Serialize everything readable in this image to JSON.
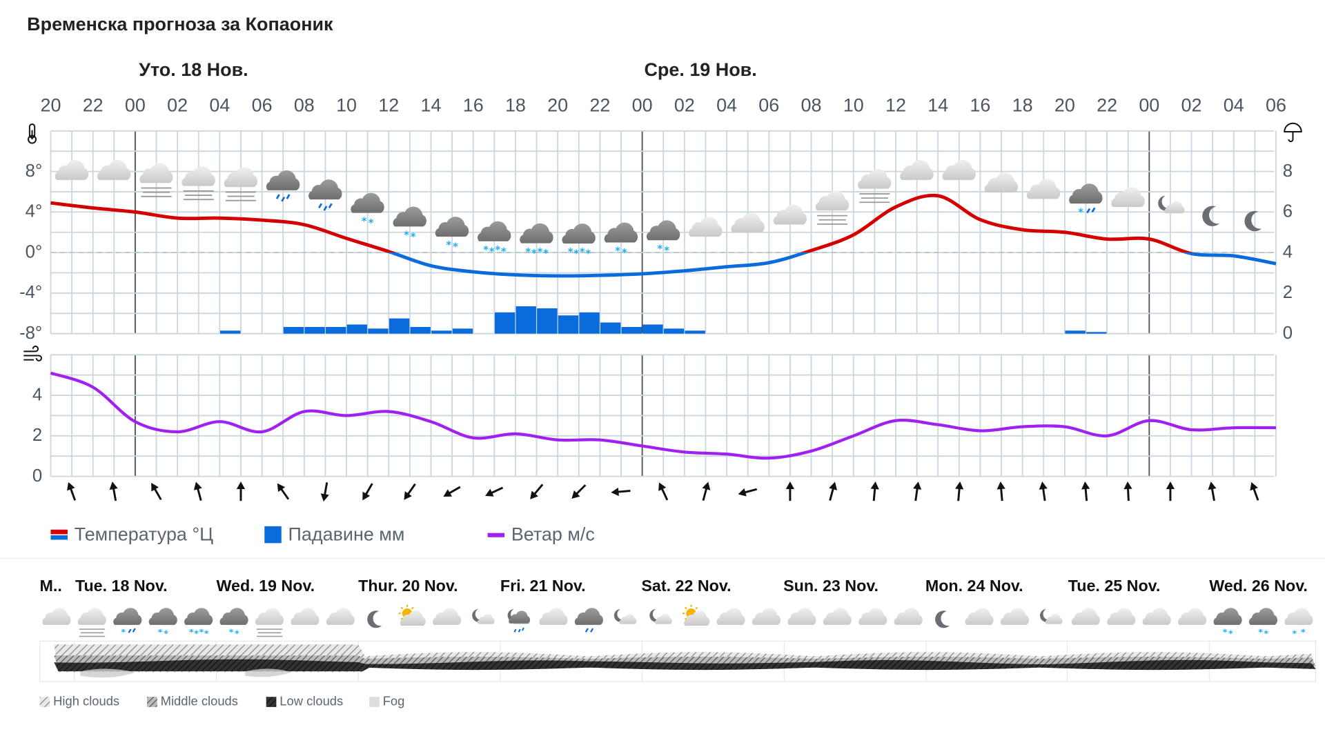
{
  "title": "Временска прогноза за Копаоник",
  "chart_data": [
    {
      "type": "line",
      "day_headers": [
        "Уто. 18 Нов.",
        "Сре. 19 Нов."
      ],
      "x_ticks": [
        "20",
        "22",
        "00",
        "02",
        "04",
        "06",
        "08",
        "10",
        "12",
        "14",
        "16",
        "18",
        "20",
        "22",
        "00",
        "02",
        "04",
        "06",
        "08",
        "10",
        "12",
        "14",
        "16",
        "18",
        "20",
        "22",
        "00",
        "02",
        "04",
        "06"
      ],
      "temperature": {
        "name": "Температура °Ц",
        "unit": "°C",
        "y_ticks": [
          "8°",
          "4°",
          "0°",
          "-4°",
          "-8°"
        ],
        "ylim": [
          -8,
          12
        ],
        "colors": {
          "above_zero": "#d40000",
          "below_zero": "#0a6bdc"
        },
        "values": [
          4.9,
          4.4,
          4.0,
          3.4,
          3.4,
          3.2,
          2.75,
          1.4,
          0.1,
          -1.3,
          -1.9,
          -2.2,
          -2.3,
          -2.25,
          -2.1,
          -1.8,
          -1.4,
          -1.0,
          0.2,
          1.75,
          4.5,
          5.6,
          3.25,
          2.25,
          2.0,
          1.33,
          1.33,
          -0.1,
          -0.33,
          -1.1
        ]
      },
      "precipitation": {
        "name": "Падавине мм",
        "type": "bar",
        "y_ticks": [
          "8",
          "6",
          "4",
          "2",
          "0"
        ],
        "ylim": [
          0,
          10
        ],
        "color": "#0a6bdc",
        "hourly_from_tick_0": [
          0,
          0,
          0,
          0,
          0,
          0,
          0,
          0,
          0.15,
          0,
          0,
          0.33,
          0.33,
          0.33,
          0.45,
          0.25,
          0.75,
          0.33,
          0.15,
          0.25,
          0,
          1.05,
          1.35,
          1.25,
          0.9,
          1.05,
          0.55,
          0.33,
          0.45,
          0.25,
          0.15,
          0,
          0,
          0,
          0,
          0,
          0,
          0,
          0,
          0,
          0,
          0,
          0,
          0,
          0,
          0,
          0,
          0,
          0.15,
          0.08,
          0,
          0,
          0,
          0,
          0,
          0,
          0,
          0
        ]
      },
      "weather_icons": [
        "cloud",
        "cloud",
        "cloud-fog",
        "cloud-fog",
        "cloud-fog",
        "rain-snow",
        "rain-snow",
        "snow",
        "snow",
        "snow",
        "snow-heavy",
        "snow-heavy",
        "snow-heavy",
        "snow",
        "snow",
        "cloud",
        "cloud",
        "cloud",
        "cloud-fog",
        "cloud-fog",
        "cloud",
        "cloud",
        "cloud",
        "cloud",
        "sleet",
        "cloud",
        "moon-cloud",
        "moon",
        "moon"
      ]
    },
    {
      "type": "line",
      "wind": {
        "name": "Ветар м/с",
        "y_ticks": [
          "4",
          "2",
          "0"
        ],
        "ylim": [
          0,
          6
        ],
        "color": "#a020f0",
        "values": [
          5.1,
          4.4,
          2.7,
          2.2,
          2.7,
          2.2,
          3.2,
          3.0,
          3.2,
          2.7,
          1.9,
          2.1,
          1.8,
          1.8,
          1.5,
          1.2,
          1.1,
          0.9,
          1.25,
          2.0,
          2.75,
          2.55,
          2.25,
          2.45,
          2.45,
          2.0,
          2.75,
          2.3,
          2.4,
          2.4
        ],
        "direction_arrows_deg": [
          -20,
          -10,
          -30,
          -15,
          0,
          -35,
          190,
          210,
          215,
          240,
          245,
          220,
          225,
          265,
          -25,
          15,
          255,
          0,
          15,
          5,
          8,
          5,
          -5,
          -8,
          -5,
          -3,
          0,
          -10,
          -20
        ]
      }
    }
  ],
  "legend": {
    "temperature": "Температура °Ц",
    "precipitation": "Падавине мм",
    "wind": "Ветар м/с"
  },
  "daily": {
    "days": [
      "M..",
      "Tue. 18 Nov.",
      "Wed. 19 Nov.",
      "Thur. 20 Nov.",
      "Fri. 21 Nov.",
      "Sat. 22 Nov.",
      "Sun. 23 Nov.",
      "Mon. 24 Nov.",
      "Tue. 25 Nov.",
      "Wed. 26 Nov."
    ],
    "icons": [
      "cloud",
      "cloud-fog",
      "sleet",
      "snow",
      "snow-heavy",
      "snow",
      "cloud-fog",
      "cloud",
      "cloud",
      "moon",
      "sun-cloud",
      "cloud",
      "moon-cloud",
      "moon-cloud-rain",
      "cloud",
      "cloud-rain",
      "moon-cloud",
      "moon-cloud",
      "sun-cloud",
      "cloud",
      "cloud",
      "cloud",
      "cloud",
      "cloud",
      "cloud",
      "moon",
      "cloud",
      "cloud",
      "moon-cloud",
      "cloud",
      "cloud",
      "cloud",
      "cloud",
      "snow",
      "snow",
      "snow-light"
    ],
    "cloud_legend": [
      "High clouds",
      "Middle clouds",
      "Low clouds",
      "Fog"
    ]
  }
}
